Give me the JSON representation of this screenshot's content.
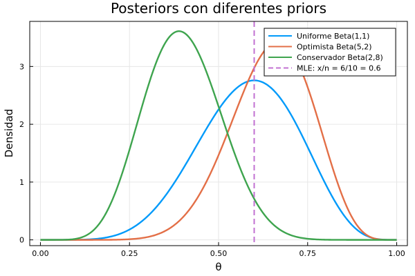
{
  "chart_data": {
    "type": "line",
    "title": "Posteriors con diferentes priors",
    "xlabel": "θ",
    "ylabel": "Densidad",
    "xlim": [
      -0.03,
      1.03
    ],
    "ylim": [
      -0.1,
      3.78
    ],
    "xticks": [
      0.0,
      0.25,
      0.5,
      0.75,
      1.0
    ],
    "xtick_labels": [
      "0.00",
      "0.25",
      "0.50",
      "0.75",
      "1.00"
    ],
    "yticks": [
      0,
      1,
      2,
      3
    ],
    "ytick_labels": [
      "0",
      "1",
      "2",
      "3"
    ],
    "grid": true,
    "legend_position": "top-right",
    "series": [
      {
        "name": "Uniforme Beta(1,1)",
        "color": "#009AFA",
        "style": "solid",
        "distribution": "beta",
        "a": 7,
        "b": 5
      },
      {
        "name": "Optimista Beta(5,2)",
        "color": "#E36F47",
        "style": "solid",
        "distribution": "beta",
        "a": 11,
        "b": 6
      },
      {
        "name": "Conservador Beta(2,8)",
        "color": "#3EA44E",
        "style": "solid",
        "distribution": "beta",
        "a": 8,
        "b": 12
      },
      {
        "name": "MLE: x/n = 6/10 = 0.6",
        "color": "#C271D2",
        "style": "dashed",
        "type": "vline",
        "x": 0.6
      }
    ]
  }
}
